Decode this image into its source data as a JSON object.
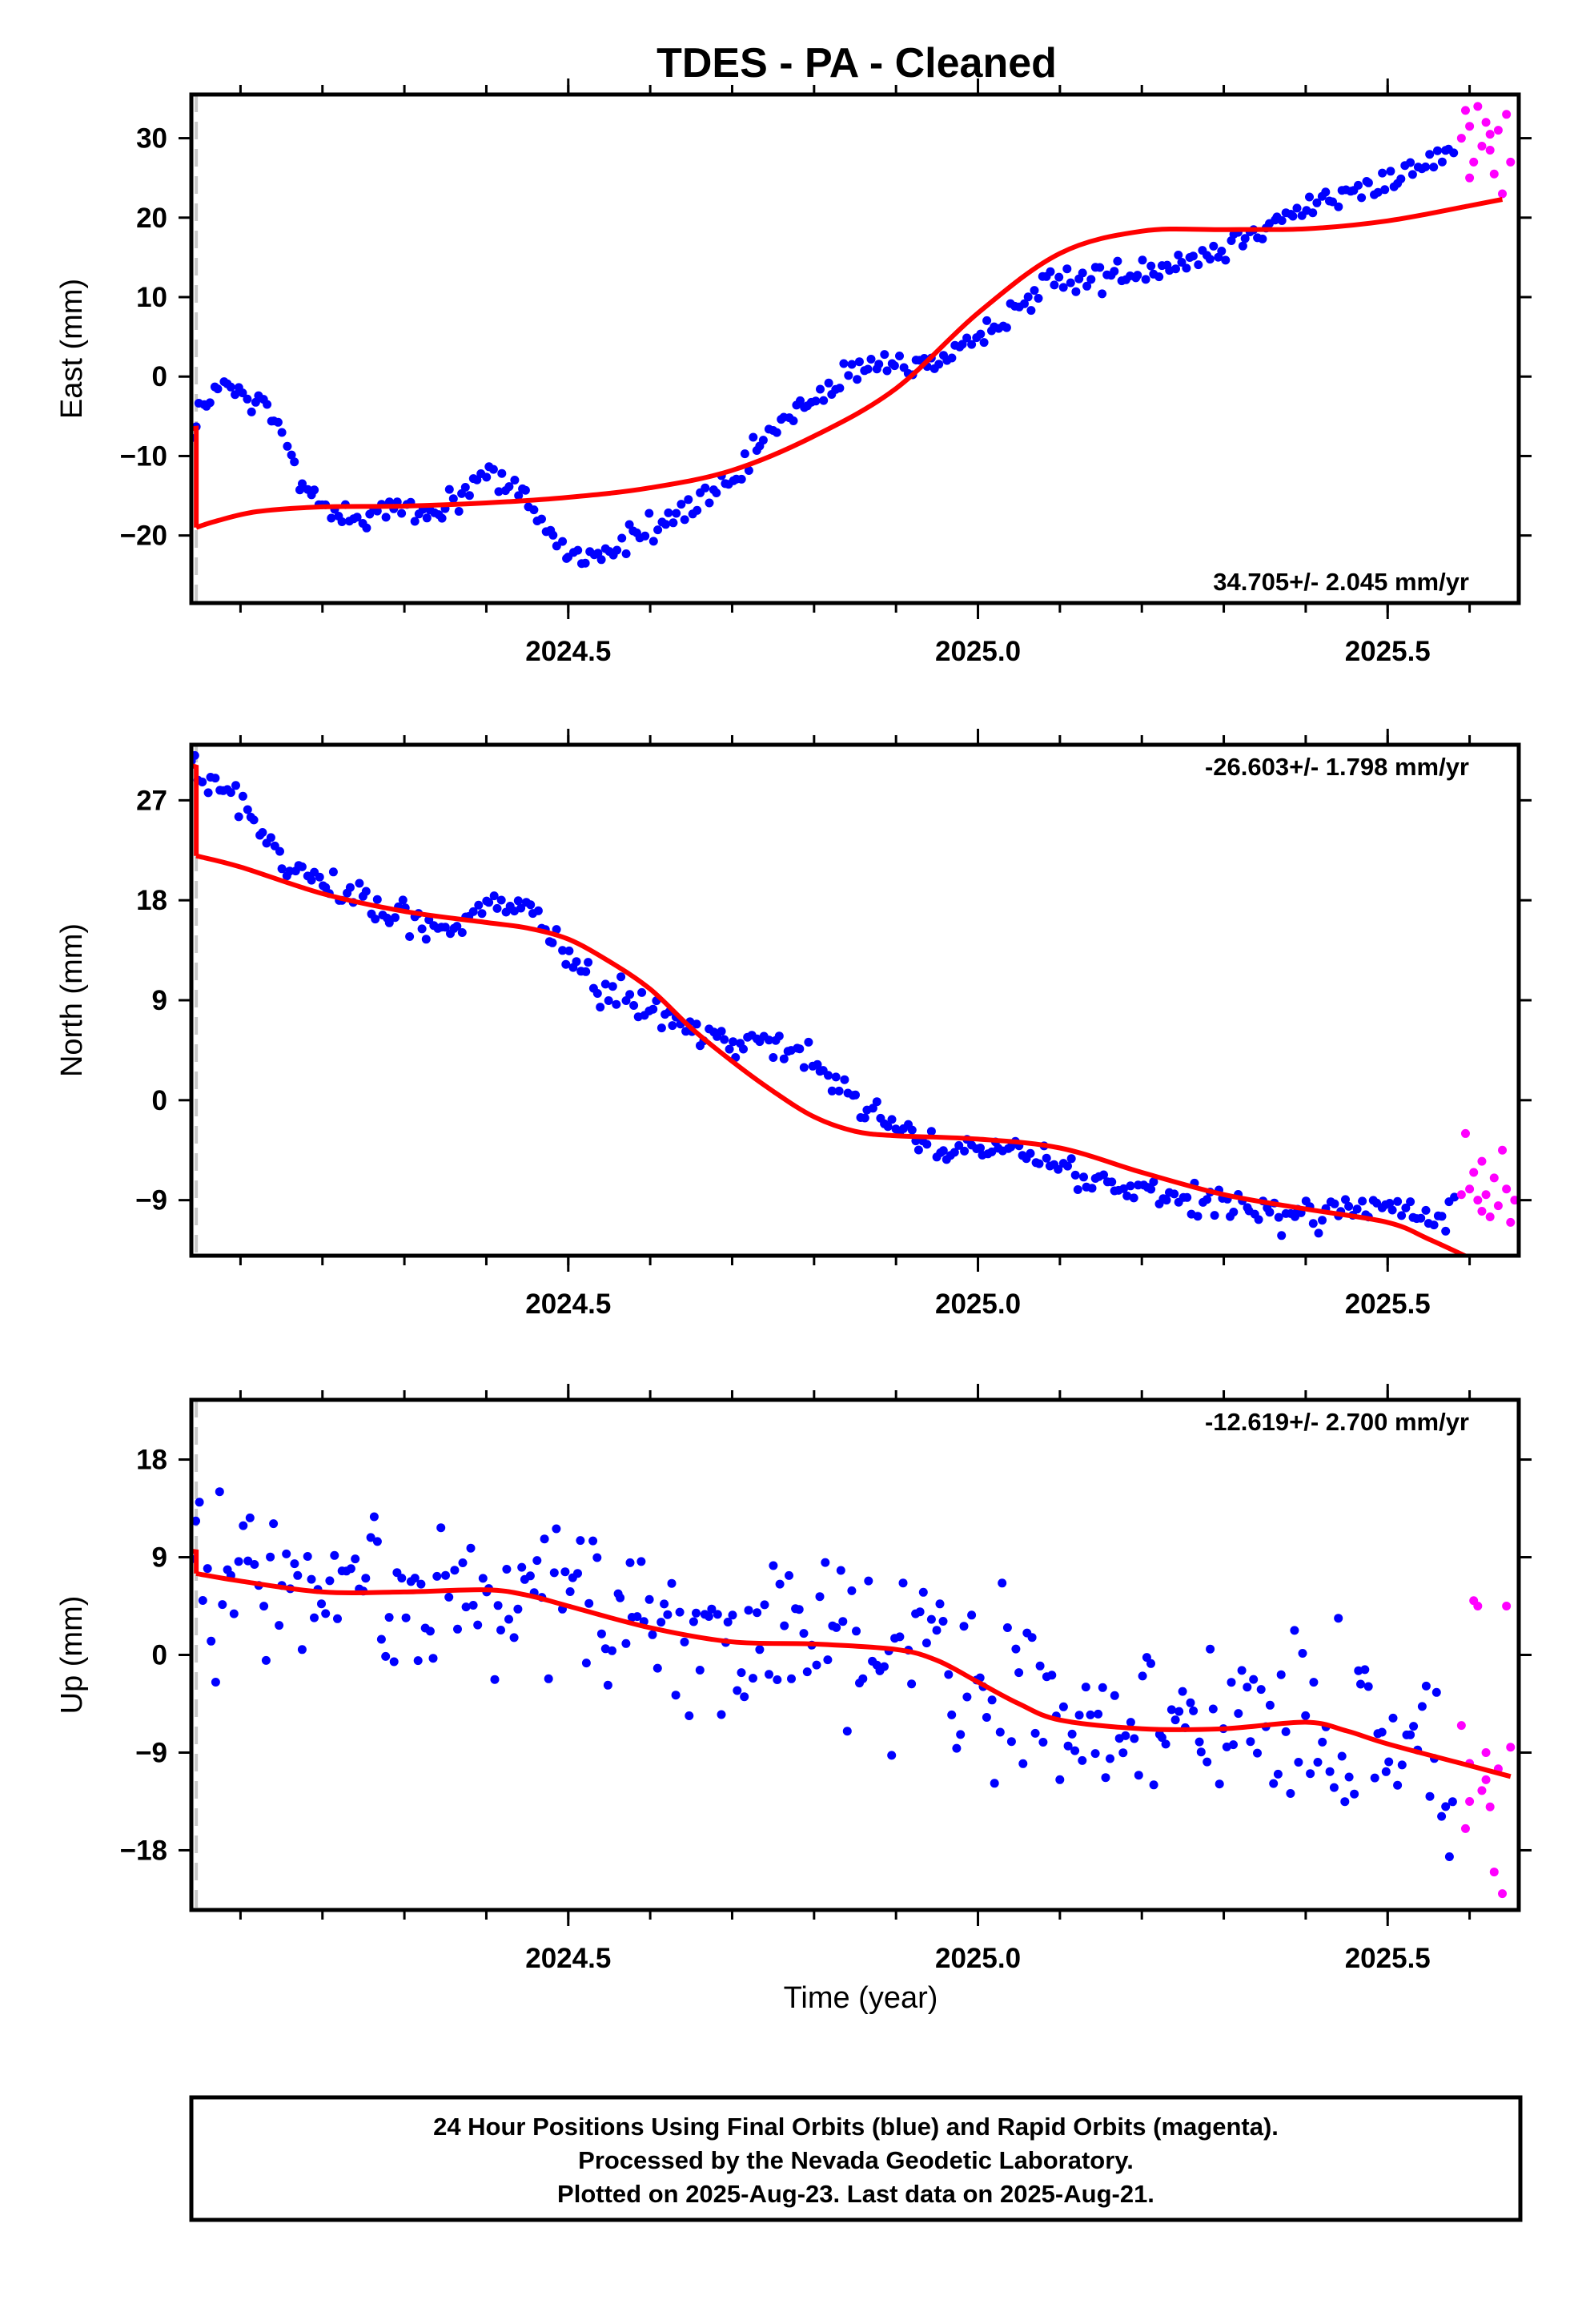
{
  "chart_data": {
    "type": "scatter",
    "title": "TDES  - PA - Cleaned",
    "xlabel": "Time (year)",
    "xlim": [
      2024.04,
      2025.66
    ],
    "x_ticks": [
      2024.5,
      2025.0,
      2025.5
    ],
    "x_tick_labels": [
      "2024.5",
      "2025.0",
      "2025.5"
    ],
    "x_minor_ticks": [
      2024.1,
      2024.2,
      2024.3,
      2024.4,
      2024.5,
      2024.6,
      2024.7,
      2024.8,
      2024.9,
      2025.0,
      2025.1,
      2025.2,
      2025.3,
      2025.4,
      2025.5,
      2025.6
    ],
    "equipment_change_epoch": 2024.046,
    "colors": {
      "final_orbits": "#0000ff",
      "rapid_orbits": "#ff00ff",
      "model": "#ff0000",
      "event_line": "#c8c8c8"
    },
    "panels": [
      {
        "id": "east",
        "ylabel": "East (mm)",
        "ylim": [
          -28.5,
          35.5
        ],
        "y_ticks": [
          -20,
          -10,
          0,
          10,
          20,
          30
        ],
        "y_tick_labels": [
          "−20",
          "−10",
          "0",
          "10",
          "20",
          "30"
        ],
        "rate_label": "34.705+/- 2.045 mm/yr",
        "rate_position": "bottom-right",
        "model_pre_step": [
          [
            2024.0,
            -7.0
          ],
          [
            2024.046,
            -6.5
          ]
        ],
        "model": [
          [
            2024.046,
            -19.0
          ],
          [
            2024.07,
            -18.2
          ],
          [
            2024.12,
            -17.0
          ],
          [
            2024.2,
            -16.4
          ],
          [
            2024.3,
            -16.3
          ],
          [
            2024.4,
            -15.9
          ],
          [
            2024.5,
            -15.2
          ],
          [
            2024.6,
            -14.0
          ],
          [
            2024.7,
            -11.8
          ],
          [
            2024.8,
            -7.5
          ],
          [
            2024.9,
            -1.5
          ],
          [
            2025.0,
            8.0
          ],
          [
            2025.1,
            15.5
          ],
          [
            2025.2,
            18.3
          ],
          [
            2025.3,
            18.5
          ],
          [
            2025.4,
            18.6
          ],
          [
            2025.5,
            19.6
          ],
          [
            2025.6,
            21.5
          ],
          [
            2025.64,
            22.3
          ]
        ],
        "final_trend": [
          [
            2024.03,
            -11.2
          ],
          [
            2024.05,
            -4.5
          ],
          [
            2024.075,
            -1.0
          ],
          [
            2024.1,
            -2.5
          ],
          [
            2024.125,
            -3.5
          ],
          [
            2024.15,
            -7.0
          ],
          [
            2024.175,
            -13.5
          ],
          [
            2024.2,
            -16.5
          ],
          [
            2024.25,
            -17.5
          ],
          [
            2024.3,
            -17.0
          ],
          [
            2024.35,
            -16.5
          ],
          [
            2024.4,
            -12.0
          ],
          [
            2024.45,
            -15.5
          ],
          [
            2024.5,
            -22.5
          ],
          [
            2024.55,
            -22.0
          ],
          [
            2024.6,
            -19.0
          ],
          [
            2024.65,
            -16.5
          ],
          [
            2024.7,
            -13.5
          ],
          [
            2024.75,
            -6.5
          ],
          [
            2024.8,
            -3.0
          ],
          [
            2024.85,
            0.5
          ],
          [
            2024.9,
            2.0
          ],
          [
            2024.95,
            1.5
          ],
          [
            2025.0,
            4.0
          ],
          [
            2025.05,
            9.5
          ],
          [
            2025.1,
            12.0
          ],
          [
            2025.15,
            12.5
          ],
          [
            2025.2,
            13.5
          ],
          [
            2025.25,
            14.5
          ],
          [
            2025.3,
            16.0
          ],
          [
            2025.35,
            19.5
          ],
          [
            2025.4,
            21.0
          ],
          [
            2025.45,
            23.0
          ],
          [
            2025.5,
            24.5
          ],
          [
            2025.55,
            27.5
          ],
          [
            2025.58,
            28.0
          ]
        ],
        "scatter_noise_mm": 1.1,
        "final_point_count": 320,
        "rapid_points": [
          [
            2025.59,
            30.0
          ],
          [
            2025.595,
            33.5
          ],
          [
            2025.6,
            31.5
          ],
          [
            2025.605,
            27.0
          ],
          [
            2025.61,
            34.0
          ],
          [
            2025.615,
            29.0
          ],
          [
            2025.62,
            32.0
          ],
          [
            2025.625,
            30.5
          ],
          [
            2025.63,
            25.5
          ],
          [
            2025.635,
            31.0
          ],
          [
            2025.64,
            23.0
          ],
          [
            2025.645,
            33.0
          ],
          [
            2025.65,
            27.0
          ],
          [
            2025.6,
            25.0
          ],
          [
            2025.625,
            28.5
          ]
        ]
      },
      {
        "id": "north",
        "ylabel": "North (mm)",
        "ylim": [
          -14.0,
          32.0
        ],
        "y_ticks": [
          -9,
          0,
          9,
          18,
          27
        ],
        "y_tick_labels": [
          "−9",
          "0",
          "9",
          "18",
          "27"
        ],
        "rate_label": "-26.603+/- 1.798 mm/yr",
        "rate_position": "top-right",
        "model_pre_step": [
          [
            2024.0,
            31.0
          ],
          [
            2024.046,
            30.0
          ]
        ],
        "model": [
          [
            2024.046,
            22.0
          ],
          [
            2024.1,
            21.0
          ],
          [
            2024.2,
            18.6
          ],
          [
            2024.3,
            17.0
          ],
          [
            2024.4,
            16.0
          ],
          [
            2024.45,
            15.5
          ],
          [
            2024.5,
            14.5
          ],
          [
            2024.55,
            12.5
          ],
          [
            2024.6,
            10.0
          ],
          [
            2024.65,
            6.5
          ],
          [
            2024.7,
            3.5
          ],
          [
            2024.75,
            0.8
          ],
          [
            2024.8,
            -1.5
          ],
          [
            2024.85,
            -2.8
          ],
          [
            2024.9,
            -3.2
          ],
          [
            2025.0,
            -3.5
          ],
          [
            2025.1,
            -4.3
          ],
          [
            2025.2,
            -6.5
          ],
          [
            2025.3,
            -8.5
          ],
          [
            2025.4,
            -9.8
          ],
          [
            2025.5,
            -11.0
          ],
          [
            2025.55,
            -12.5
          ],
          [
            2025.6,
            -14.2
          ]
        ],
        "final_trend": [
          [
            2024.03,
            30.5
          ],
          [
            2024.05,
            29.0
          ],
          [
            2024.1,
            27.0
          ],
          [
            2024.125,
            24.0
          ],
          [
            2024.15,
            21.5
          ],
          [
            2024.2,
            20.0
          ],
          [
            2024.25,
            18.0
          ],
          [
            2024.3,
            16.5
          ],
          [
            2024.35,
            15.5
          ],
          [
            2024.4,
            17.5
          ],
          [
            2024.45,
            16.5
          ],
          [
            2024.5,
            13.5
          ],
          [
            2024.55,
            9.5
          ],
          [
            2024.6,
            8.5
          ],
          [
            2024.65,
            6.5
          ],
          [
            2024.7,
            5.0
          ],
          [
            2024.75,
            5.5
          ],
          [
            2024.8,
            3.0
          ],
          [
            2024.85,
            0.0
          ],
          [
            2024.9,
            -2.5
          ],
          [
            2024.95,
            -4.5
          ],
          [
            2025.0,
            -4.8
          ],
          [
            2025.05,
            -4.0
          ],
          [
            2025.1,
            -6.0
          ],
          [
            2025.15,
            -7.5
          ],
          [
            2025.2,
            -8.5
          ],
          [
            2025.25,
            -9.0
          ],
          [
            2025.3,
            -9.5
          ],
          [
            2025.35,
            -10.0
          ],
          [
            2025.4,
            -10.5
          ],
          [
            2025.45,
            -10.0
          ],
          [
            2025.5,
            -9.5
          ],
          [
            2025.55,
            -11.0
          ],
          [
            2025.58,
            -10.0
          ]
        ],
        "scatter_noise_mm": 0.9,
        "final_point_count": 320,
        "rapid_points": [
          [
            2025.59,
            -8.5
          ],
          [
            2025.595,
            -3.0
          ],
          [
            2025.6,
            -8.0
          ],
          [
            2025.605,
            -6.5
          ],
          [
            2025.61,
            -9.0
          ],
          [
            2025.615,
            -5.5
          ],
          [
            2025.62,
            -8.5
          ],
          [
            2025.625,
            -10.5
          ],
          [
            2025.63,
            -7.0
          ],
          [
            2025.635,
            -9.5
          ],
          [
            2025.64,
            -4.5
          ],
          [
            2025.645,
            -8.0
          ],
          [
            2025.65,
            -11.0
          ],
          [
            2025.655,
            -9.0
          ],
          [
            2025.615,
            -10.0
          ]
        ]
      },
      {
        "id": "up",
        "ylabel": "Up (mm)",
        "ylim": [
          -23.5,
          23.5
        ],
        "y_ticks": [
          -18,
          -9,
          0,
          9,
          18
        ],
        "y_tick_labels": [
          "−18",
          "−9",
          "0",
          "9",
          "18"
        ],
        "rate_label": "-12.619+/- 2.700 mm/yr",
        "rate_position": "top-right",
        "model_pre_step": [
          [
            2024.0,
            10.0
          ],
          [
            2024.046,
            9.5
          ]
        ],
        "model": [
          [
            2024.046,
            7.5
          ],
          [
            2024.1,
            6.8
          ],
          [
            2024.2,
            5.8
          ],
          [
            2024.3,
            5.8
          ],
          [
            2024.4,
            6.0
          ],
          [
            2024.45,
            5.5
          ],
          [
            2024.5,
            4.5
          ],
          [
            2024.6,
            2.5
          ],
          [
            2024.7,
            1.2
          ],
          [
            2024.8,
            1.0
          ],
          [
            2024.9,
            0.5
          ],
          [
            2024.95,
            -0.5
          ],
          [
            2025.0,
            -2.5
          ],
          [
            2025.05,
            -4.5
          ],
          [
            2025.1,
            -6.0
          ],
          [
            2025.2,
            -6.8
          ],
          [
            2025.3,
            -6.8
          ],
          [
            2025.4,
            -6.2
          ],
          [
            2025.45,
            -7.0
          ],
          [
            2025.5,
            -8.2
          ],
          [
            2025.6,
            -10.2
          ],
          [
            2025.65,
            -11.2
          ]
        ],
        "final_trend": [
          [
            2024.03,
            9.0
          ],
          [
            2024.1,
            6.5
          ],
          [
            2024.2,
            5.5
          ],
          [
            2024.3,
            6.0
          ],
          [
            2024.4,
            6.0
          ],
          [
            2024.5,
            4.5
          ],
          [
            2024.6,
            3.0
          ],
          [
            2024.7,
            1.5
          ],
          [
            2024.8,
            1.0
          ],
          [
            2024.9,
            0.0
          ],
          [
            2025.0,
            -2.5
          ],
          [
            2025.1,
            -5.5
          ],
          [
            2025.2,
            -6.5
          ],
          [
            2025.3,
            -6.5
          ],
          [
            2025.4,
            -6.0
          ],
          [
            2025.5,
            -8.0
          ],
          [
            2025.58,
            -11.0
          ]
        ],
        "scatter_noise_mm": 5.0,
        "final_point_count": 320,
        "rapid_points": [
          [
            2025.59,
            -6.5
          ],
          [
            2025.595,
            -16.0
          ],
          [
            2025.6,
            -10.0
          ],
          [
            2025.605,
            5.0
          ],
          [
            2025.61,
            4.5
          ],
          [
            2025.615,
            -12.5
          ],
          [
            2025.62,
            -9.0
          ],
          [
            2025.625,
            -14.0
          ],
          [
            2025.63,
            -20.0
          ],
          [
            2025.635,
            -10.5
          ],
          [
            2025.64,
            -22.0
          ],
          [
            2025.645,
            4.5
          ],
          [
            2025.65,
            -8.5
          ],
          [
            2025.6,
            -13.5
          ],
          [
            2025.62,
            -11.5
          ]
        ]
      }
    ],
    "footer_lines": [
      "24 Hour Positions Using Final Orbits (blue) and Rapid Orbits (magenta).",
      "Processed by the Nevada Geodetic Laboratory.",
      "Plotted on 2025-Aug-23. Last data on 2025-Aug-21."
    ]
  }
}
